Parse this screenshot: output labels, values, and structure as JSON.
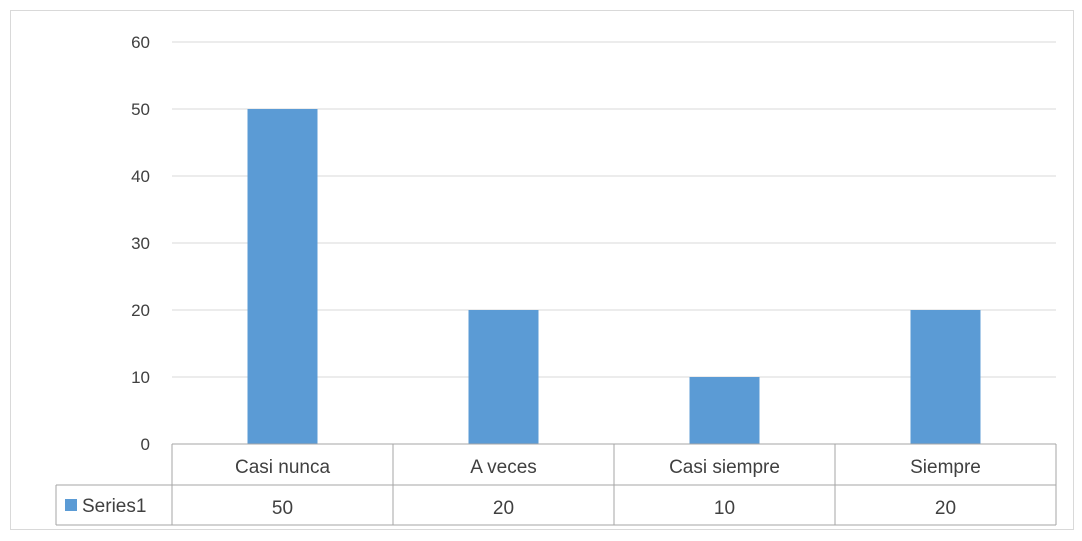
{
  "chart_data": {
    "type": "bar",
    "categories": [
      "Casi nunca",
      "A veces",
      "Casi siempre",
      "Siempre"
    ],
    "series": [
      {
        "name": "Series1",
        "values": [
          50,
          20,
          10,
          20
        ],
        "color": "#5b9bd5"
      }
    ],
    "ylim": [
      0,
      60
    ],
    "yticks": [
      0,
      10,
      20,
      30,
      40,
      50,
      60
    ],
    "title": "",
    "xlabel": "",
    "ylabel": "",
    "grid": true,
    "legend": "data-table",
    "data_table": true
  },
  "colors": {
    "bar": "#5b9bd5",
    "gridline": "#d9d9d9",
    "text": "#404040",
    "table_border": "#a6a6a6"
  }
}
